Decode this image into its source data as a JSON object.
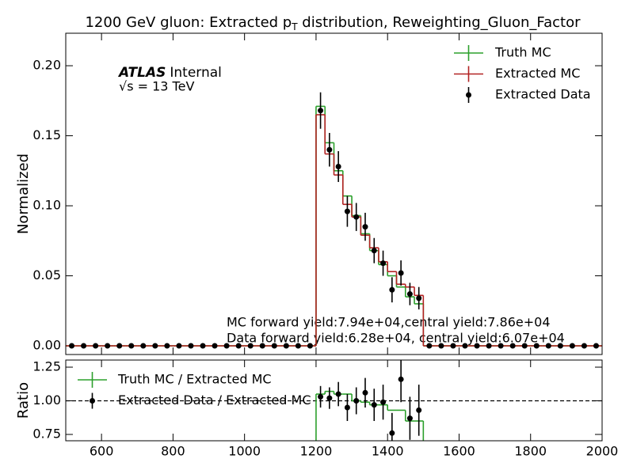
{
  "chart_data": [
    {
      "type": "histogram",
      "title": [
        "1200 GeV gluon: Extracted p",
        "T",
        " distribution, Reweighting_Gluon_Factor"
      ],
      "atlas_label": "ATLAS",
      "atlas_status": "Internal",
      "energy_label": "√s = 13 TeV",
      "annotations": [
        "MC forward yield:7.94e+04,central yield:7.86e+04",
        "Data forward yield:6.28e+04, central yield:6.07e+04"
      ],
      "ylabel": "Normalized",
      "xlim": [
        500,
        2000
      ],
      "xticks": [
        600,
        800,
        1000,
        1200,
        1400,
        1600,
        1800,
        2000
      ],
      "ylim": [
        -0.0062,
        0.2232
      ],
      "yticks": [
        {
          "value": 0,
          "label": "0.00"
        },
        {
          "value": 0.05,
          "label": "0.05"
        },
        {
          "value": 0.1,
          "label": "0.10"
        },
        {
          "value": 0.15,
          "label": "0.15"
        },
        {
          "value": 0.2,
          "label": "0.20"
        }
      ],
      "legend": "upper right",
      "bins": [
        500,
        533.3,
        566.7,
        600,
        633.3,
        666.7,
        700,
        733.3,
        766.7,
        800,
        833.3,
        866.7,
        900,
        933.3,
        966.7,
        1000,
        1033.3,
        1066.7,
        1100,
        1133.3,
        1166.7,
        1200,
        1225,
        1250,
        1275,
        1300,
        1325,
        1350,
        1375,
        1400,
        1425,
        1450,
        1475,
        1500,
        1533.3,
        1566.7,
        1600,
        1633.3,
        1666.7,
        1700,
        1733.3,
        1766.7,
        1800,
        1833.3,
        1866.7,
        1900,
        1933.3,
        1966.7,
        2000
      ],
      "series": [
        {
          "name": "Truth MC",
          "color": "#2ca02c",
          "style": "step",
          "values": [
            0,
            0,
            0,
            0,
            0,
            0,
            0,
            0,
            0,
            0,
            0,
            0,
            0,
            0,
            0,
            0,
            0,
            0,
            0,
            0,
            0,
            0.171,
            0.145,
            0.125,
            0.107,
            0.093,
            0.08,
            0.068,
            0.058,
            0.05,
            0.042,
            0.035,
            0.03,
            0,
            0,
            0,
            0,
            0,
            0,
            0,
            0,
            0,
            0,
            0,
            0,
            0,
            0,
            0
          ]
        },
        {
          "name": "Extracted MC",
          "color": "#b22222",
          "style": "step",
          "values": [
            0,
            0,
            0,
            0,
            0,
            0,
            0,
            0,
            0,
            0,
            0,
            0,
            0,
            0,
            0,
            0,
            0,
            0,
            0,
            0,
            0,
            0.165,
            0.137,
            0.122,
            0.101,
            0.092,
            0.079,
            0.07,
            0.06,
            0.053,
            0.044,
            0.042,
            0.036,
            0,
            0,
            0,
            0,
            0,
            0,
            0,
            0,
            0,
            0,
            0,
            0,
            0,
            0,
            0
          ]
        },
        {
          "name": "Extracted Data",
          "color": "#000000",
          "style": "points",
          "values": [
            0,
            0,
            0,
            0,
            0,
            0,
            0,
            0,
            0,
            0,
            0,
            0,
            0,
            0,
            0,
            0,
            0,
            0,
            0,
            0,
            0,
            0.168,
            0.14,
            0.128,
            0.096,
            0.092,
            0.085,
            0.068,
            0.059,
            0.04,
            0.052,
            0.037,
            0.034,
            0,
            0,
            0,
            0,
            0,
            0,
            0,
            0,
            0,
            0,
            0,
            0,
            0,
            0,
            0
          ],
          "errors": [
            0,
            0,
            0,
            0,
            0,
            0,
            0,
            0,
            0,
            0,
            0,
            0,
            0,
            0,
            0,
            0,
            0,
            0,
            0,
            0,
            0,
            0.013,
            0.012,
            0.011,
            0.011,
            0.01,
            0.01,
            0.009,
            0.009,
            0.009,
            0.009,
            0.008,
            0.008,
            0,
            0,
            0,
            0,
            0,
            0,
            0,
            0,
            0,
            0,
            0,
            0,
            0,
            0,
            0
          ]
        }
      ]
    },
    {
      "type": "histogram",
      "ylabel": "Ratio",
      "xlim": [
        500,
        2000
      ],
      "xticks": [
        600,
        800,
        1000,
        1200,
        1400,
        1600,
        1800,
        2000
      ],
      "ylim": [
        0.703,
        1.303
      ],
      "yticks": [
        {
          "value": 0.75,
          "label": "0.75"
        },
        {
          "value": 1,
          "label": "1.00"
        },
        {
          "value": 1.25,
          "label": "1.25"
        }
      ],
      "reference_line": 1,
      "legend": "upper left",
      "bins": [
        500,
        533.3,
        566.7,
        600,
        633.3,
        666.7,
        700,
        733.3,
        766.7,
        800,
        833.3,
        866.7,
        900,
        933.3,
        966.7,
        1000,
        1033.3,
        1066.7,
        1100,
        1133.3,
        1166.7,
        1200,
        1225,
        1250,
        1275,
        1300,
        1325,
        1350,
        1375,
        1400,
        1425,
        1450,
        1475,
        1500,
        1533.3,
        1566.7,
        1600,
        1633.3,
        1666.7,
        1700,
        1733.3,
        1766.7,
        1800,
        1833.3,
        1866.7,
        1900,
        1933.3,
        1966.7,
        2000
      ],
      "series": [
        {
          "name": "Truth MC / Extracted MC",
          "color": "#2ca02c",
          "style": "step",
          "values": [
            null,
            null,
            null,
            null,
            null,
            null,
            null,
            null,
            null,
            null,
            null,
            null,
            null,
            null,
            null,
            null,
            null,
            null,
            null,
            null,
            null,
            1.05,
            1.07,
            1.05,
            1.05,
            1.0,
            0.99,
            0.97,
            0.97,
            0.93,
            0.93,
            0.85,
            0.85,
            null,
            null,
            null,
            null,
            null,
            null,
            null,
            null,
            null,
            null,
            null,
            null,
            null,
            null,
            null
          ]
        },
        {
          "name": "Extracted Data / Extracted MC",
          "color": "#000000",
          "style": "points",
          "values": [
            null,
            null,
            null,
            null,
            null,
            null,
            null,
            null,
            null,
            null,
            null,
            null,
            null,
            null,
            null,
            null,
            null,
            null,
            null,
            null,
            null,
            1.03,
            1.02,
            1.05,
            0.95,
            1.0,
            1.06,
            0.97,
            0.99,
            0.76,
            1.16,
            0.87,
            0.93,
            null,
            null,
            null,
            null,
            null,
            null,
            null,
            null,
            null,
            null,
            null,
            null,
            null,
            null,
            null
          ],
          "errors": [
            null,
            null,
            null,
            null,
            null,
            null,
            null,
            null,
            null,
            null,
            null,
            null,
            null,
            null,
            null,
            null,
            null,
            null,
            null,
            null,
            null,
            0.08,
            0.08,
            0.09,
            0.1,
            0.1,
            0.11,
            0.12,
            0.13,
            0.15,
            0.17,
            0.16,
            0.19,
            null,
            null,
            null,
            null,
            null,
            null,
            null,
            null,
            null,
            null,
            null,
            null,
            null,
            null,
            null
          ]
        }
      ]
    }
  ]
}
